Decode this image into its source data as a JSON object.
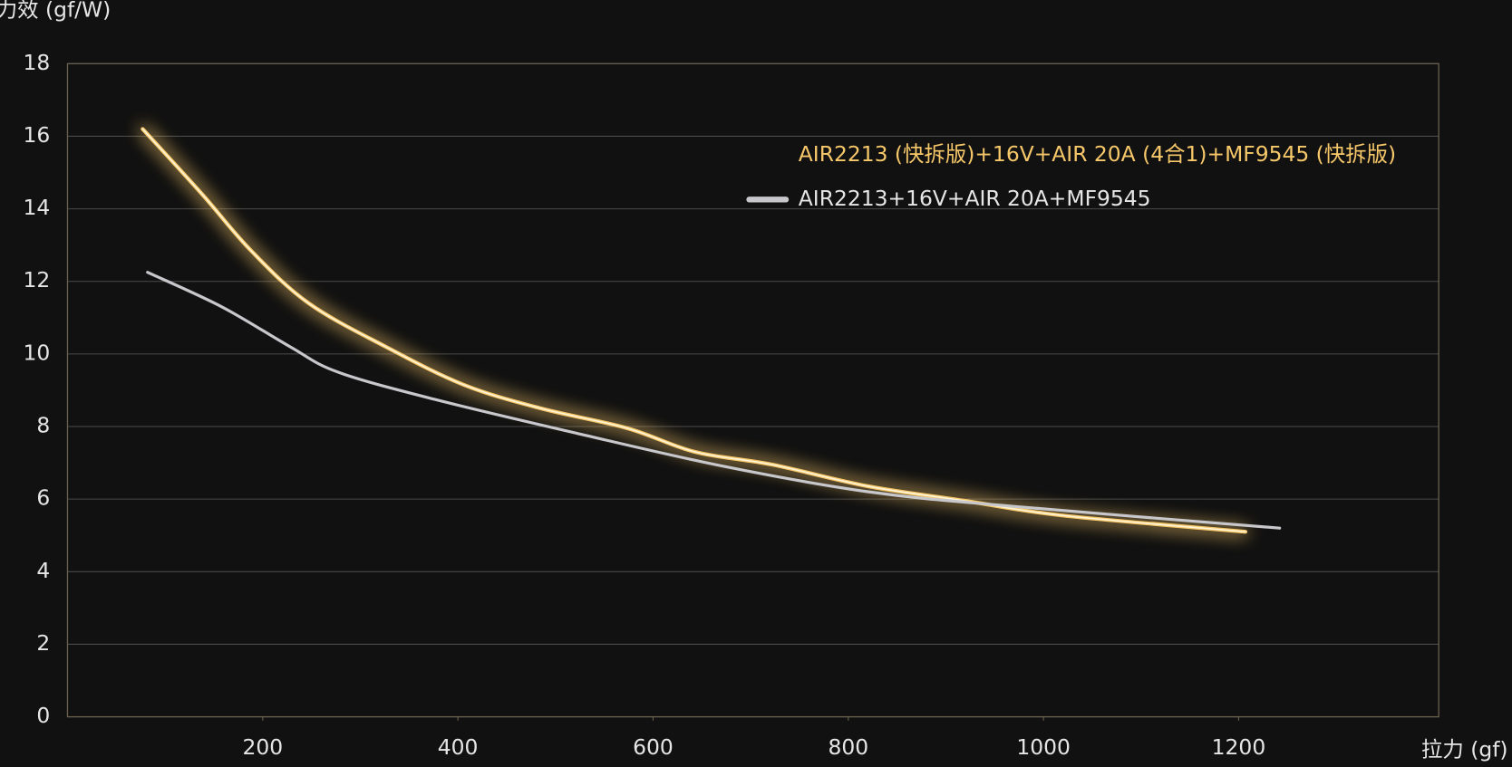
{
  "chart_data": {
    "type": "line",
    "y_label": "力效 (gf/W)",
    "x_label": "拉力 (gf)",
    "xlim": [
      0,
      1405
    ],
    "ylim": [
      0,
      18
    ],
    "xticks": [
      200,
      400,
      600,
      800,
      1000,
      1200
    ],
    "yticks": [
      0,
      2,
      4,
      6,
      8,
      10,
      12,
      14,
      16,
      18
    ],
    "grid": true,
    "legend": "upper right",
    "series": [
      {
        "name": "AIR2213 (快拆版)+16V+AIR 20A (4合1)+MF9545 (快拆版)",
        "color": "#f7c86a",
        "glow": true,
        "x": [
          77,
          138,
          188,
          247,
          326,
          406,
          485,
          574,
          643,
          722,
          821,
          920,
          1019,
          1207
        ],
        "values": [
          16.2,
          14.4,
          12.85,
          11.4,
          10.2,
          9.15,
          8.5,
          7.95,
          7.3,
          6.95,
          6.35,
          5.95,
          5.55,
          5.1
        ]
      },
      {
        "name": "AIR2213+16V+AIR 20A+MF9545",
        "color": "#c8c8cc",
        "glow": false,
        "x": [
          82,
          158,
          228,
          277,
          376,
          524,
          673,
          821,
          969,
          1242
        ],
        "values": [
          12.25,
          11.3,
          10.2,
          9.5,
          8.75,
          7.8,
          6.9,
          6.2,
          5.8,
          5.2
        ]
      }
    ]
  }
}
